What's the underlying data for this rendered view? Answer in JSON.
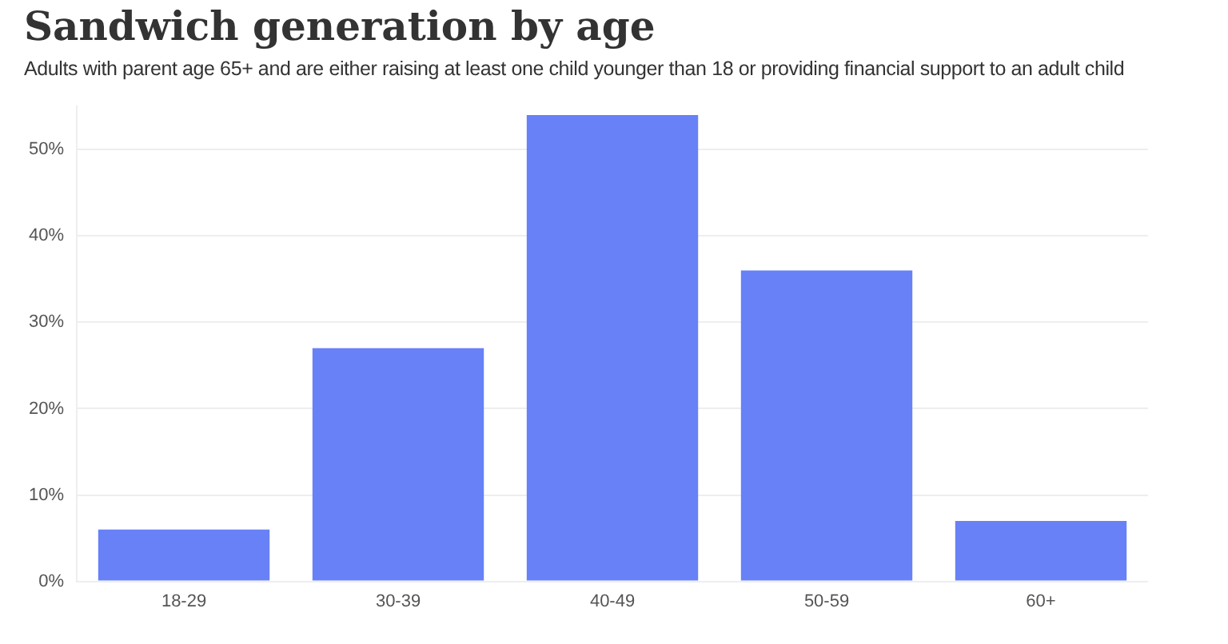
{
  "chart_data": {
    "type": "bar",
    "title": "Sandwich generation by age",
    "subtitle": "Adults with parent age 65+ and are either raising at least one child younger than 18 or providing financial support to an adult child",
    "categories": [
      "18-29",
      "30-39",
      "40-49",
      "50-59",
      "60+"
    ],
    "values": [
      6,
      27,
      54,
      36,
      7
    ],
    "color": "#6881f6",
    "ylim": [
      0,
      55
    ],
    "yticks": [
      {
        "value": 0,
        "label": "0%"
      },
      {
        "value": 10,
        "label": "10%"
      },
      {
        "value": 20,
        "label": "20%"
      },
      {
        "value": 30,
        "label": "30%"
      },
      {
        "value": 40,
        "label": "40%"
      },
      {
        "value": 50,
        "label": "50%"
      }
    ],
    "grid": "y"
  }
}
